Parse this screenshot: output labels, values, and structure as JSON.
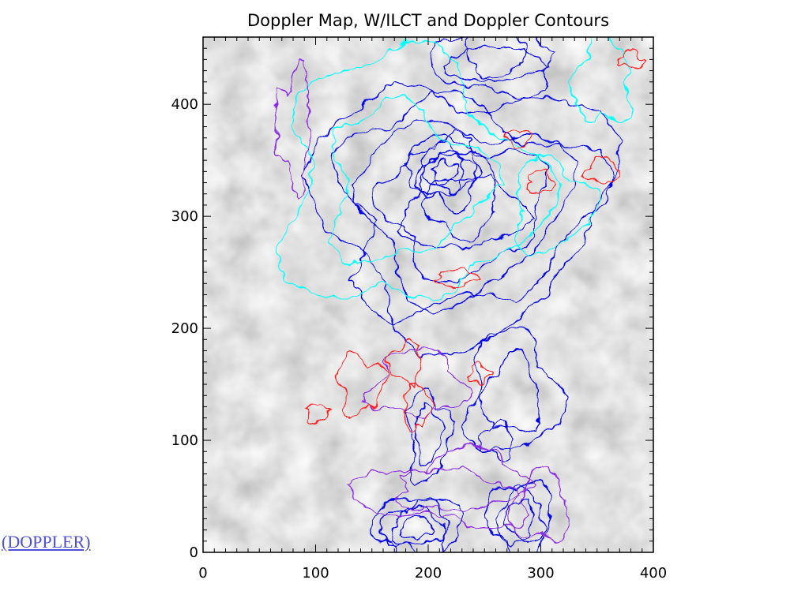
{
  "link": {
    "label": "(DOPPLER)"
  },
  "colors": {
    "background_gray": "#8c8c8c",
    "ilct_positive": "#00ffff",
    "ilct_negative": "#8a2be2",
    "doppler_blue": "#0000e6",
    "doppler_red": "#ff1a1a"
  },
  "chart_data": {
    "type": "heatmap",
    "title": "Doppler Map, W/ILCT and Doppler Contours",
    "xlabel": "",
    "ylabel": "",
    "xlim": [
      0,
      400
    ],
    "ylim": [
      0,
      460
    ],
    "x_ticks": [
      0,
      100,
      200,
      300,
      400
    ],
    "y_ticks": [
      0,
      100,
      200,
      300,
      400
    ],
    "grid": false,
    "legend": "none",
    "contour_groups": [
      {
        "color": "#0000e6",
        "regions": [
          {
            "cx": 230,
            "cy": 310,
            "rx": 130,
            "ry": 110,
            "levels": 6
          },
          {
            "cx": 215,
            "cy": 340,
            "rx": 30,
            "ry": 30,
            "levels": 4
          },
          {
            "cx": 190,
            "cy": 22,
            "rx": 40,
            "ry": 28,
            "levels": 4
          },
          {
            "cx": 282,
            "cy": 30,
            "rx": 28,
            "ry": 35,
            "levels": 3
          },
          {
            "cx": 275,
            "cy": 140,
            "rx": 40,
            "ry": 55,
            "levels": 2
          },
          {
            "cx": 200,
            "cy": 105,
            "rx": 18,
            "ry": 40,
            "levels": 2
          },
          {
            "cx": 260,
            "cy": 100,
            "rx": 15,
            "ry": 15,
            "levels": 1
          },
          {
            "cx": 260,
            "cy": 440,
            "rx": 55,
            "ry": 30,
            "levels": 3
          }
        ]
      },
      {
        "color": "#00ffff",
        "regions": [
          {
            "cx": 180,
            "cy": 330,
            "rx": 110,
            "ry": 110,
            "levels": 2
          },
          {
            "cx": 355,
            "cy": 420,
            "rx": 25,
            "ry": 40,
            "levels": 1
          },
          {
            "cx": 310,
            "cy": 310,
            "rx": 35,
            "ry": 40,
            "levels": 1
          }
        ]
      },
      {
        "color": "#8a2be2",
        "regions": [
          {
            "cx": 220,
            "cy": 55,
            "rx": 80,
            "ry": 30,
            "levels": 2
          },
          {
            "cx": 190,
            "cy": 150,
            "rx": 40,
            "ry": 30,
            "levels": 1
          },
          {
            "cx": 80,
            "cy": 380,
            "rx": 15,
            "ry": 50,
            "levels": 1
          },
          {
            "cx": 300,
            "cy": 40,
            "rx": 25,
            "ry": 30,
            "levels": 1
          }
        ]
      },
      {
        "color": "#ff1a1a",
        "regions": [
          {
            "cx": 140,
            "cy": 150,
            "rx": 20,
            "ry": 25,
            "levels": 1
          },
          {
            "cx": 180,
            "cy": 170,
            "rx": 15,
            "ry": 18,
            "levels": 1
          },
          {
            "cx": 190,
            "cy": 130,
            "rx": 12,
            "ry": 20,
            "levels": 1
          },
          {
            "cx": 225,
            "cy": 245,
            "rx": 18,
            "ry": 8,
            "levels": 1
          },
          {
            "cx": 300,
            "cy": 330,
            "rx": 12,
            "ry": 10,
            "levels": 1
          },
          {
            "cx": 355,
            "cy": 340,
            "rx": 15,
            "ry": 12,
            "levels": 1
          },
          {
            "cx": 280,
            "cy": 370,
            "rx": 10,
            "ry": 8,
            "levels": 1
          },
          {
            "cx": 100,
            "cy": 125,
            "rx": 10,
            "ry": 8,
            "levels": 1
          },
          {
            "cx": 245,
            "cy": 160,
            "rx": 8,
            "ry": 8,
            "levels": 1
          },
          {
            "cx": 380,
            "cy": 440,
            "rx": 10,
            "ry": 8,
            "levels": 1
          }
        ]
      }
    ]
  }
}
